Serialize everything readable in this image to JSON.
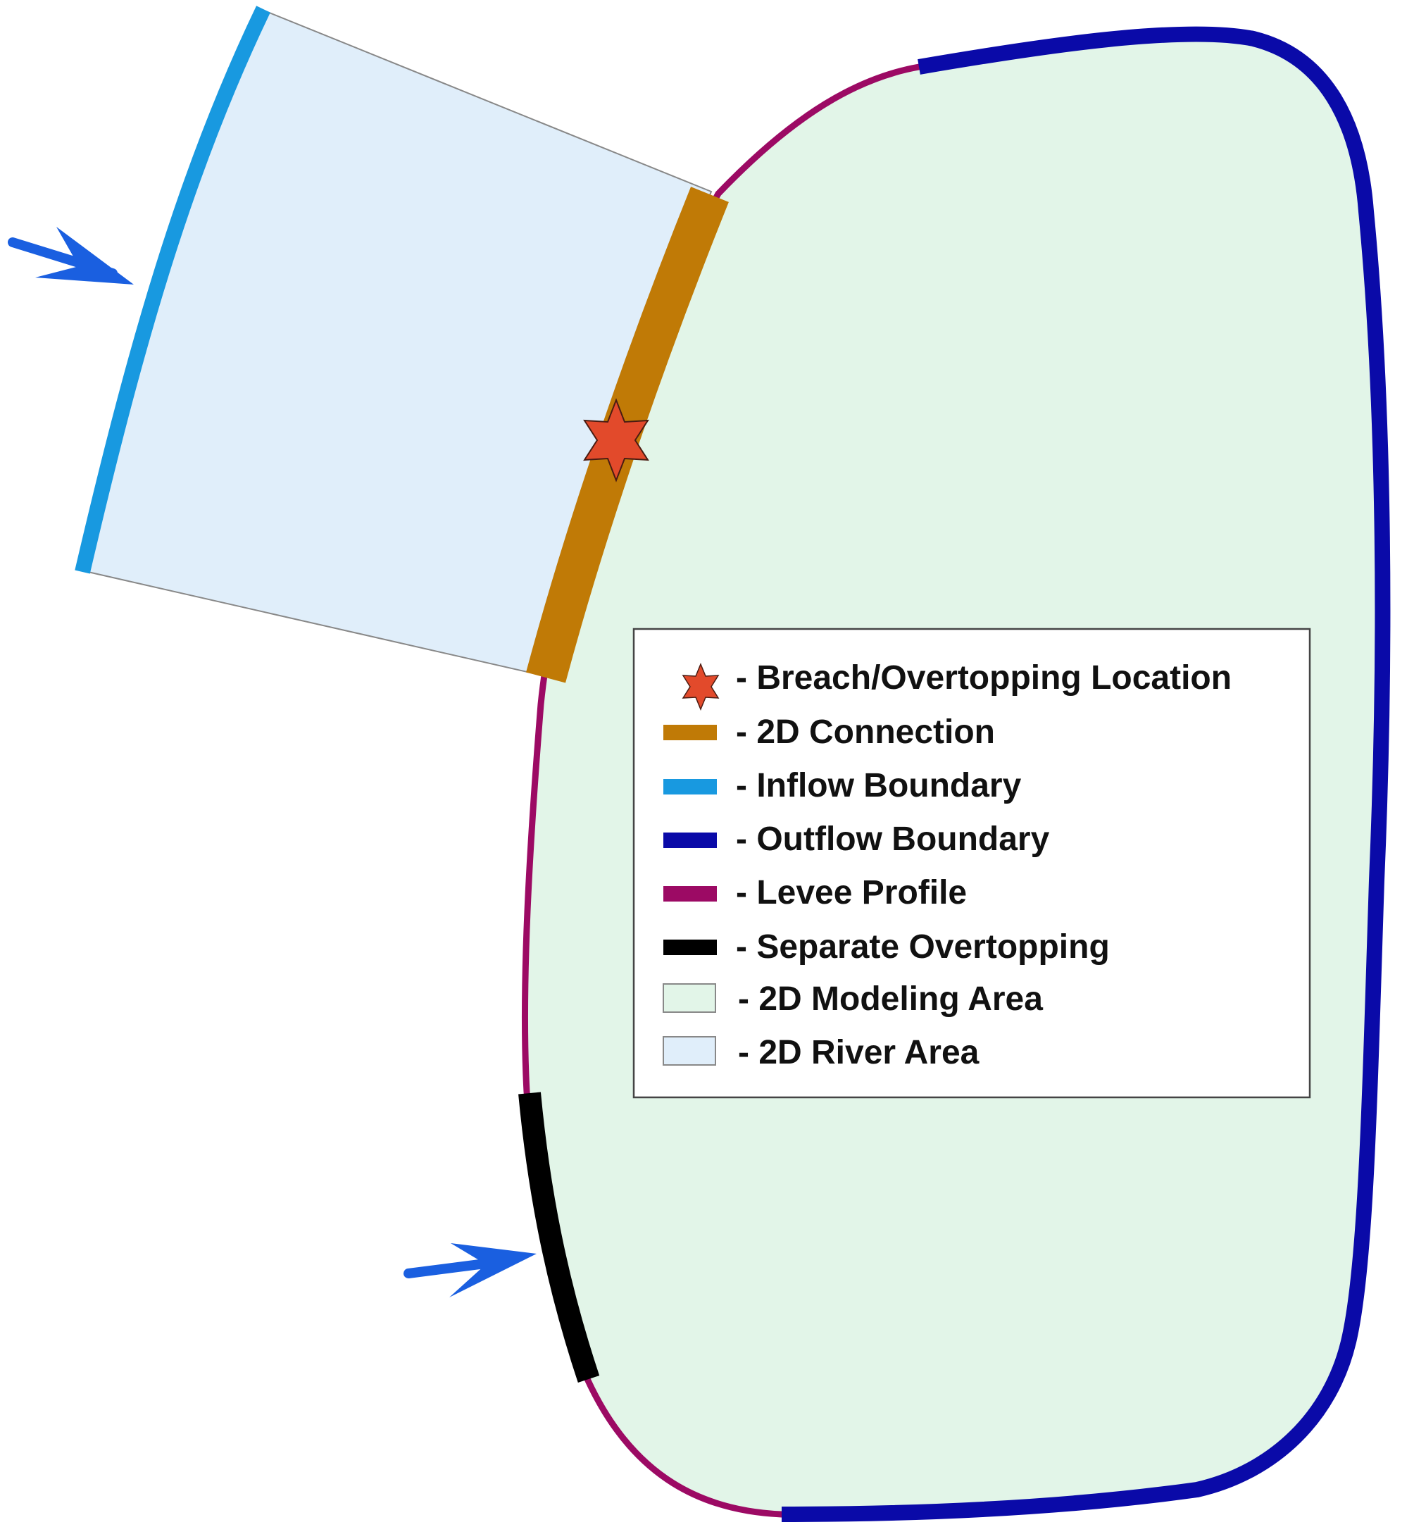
{
  "legend": {
    "items": [
      {
        "symbol": "star",
        "color": "#e24a2b",
        "label": "- Breach/Overtopping Location"
      },
      {
        "symbol": "line",
        "color": "#c07a06",
        "label": "- 2D Connection"
      },
      {
        "symbol": "line",
        "color": "#1899e0",
        "label": "- Inflow Boundary"
      },
      {
        "symbol": "line",
        "color": "#0a0aa8",
        "label": "- Outflow Boundary"
      },
      {
        "symbol": "line",
        "color": "#9c0a64",
        "label": "- Levee Profile"
      },
      {
        "symbol": "line",
        "color": "#000000",
        "label": "- Separate Overtopping"
      },
      {
        "symbol": "swatch",
        "color": "#e2f5e8",
        "label": "- 2D Modeling Area"
      },
      {
        "symbol": "swatch",
        "color": "#e0eefa",
        "label": "- 2D River Area"
      }
    ]
  },
  "colors": {
    "modeling_area_fill": "#e2f5e8",
    "river_area_fill": "#e0eefa",
    "connection": "#c07a06",
    "inflow": "#1899e0",
    "outflow": "#0a0aa8",
    "levee": "#9c0a64",
    "separate_overtopping": "#000000",
    "breach_star": "#e24a2b",
    "flow_arrow": "#1a5fe0"
  }
}
